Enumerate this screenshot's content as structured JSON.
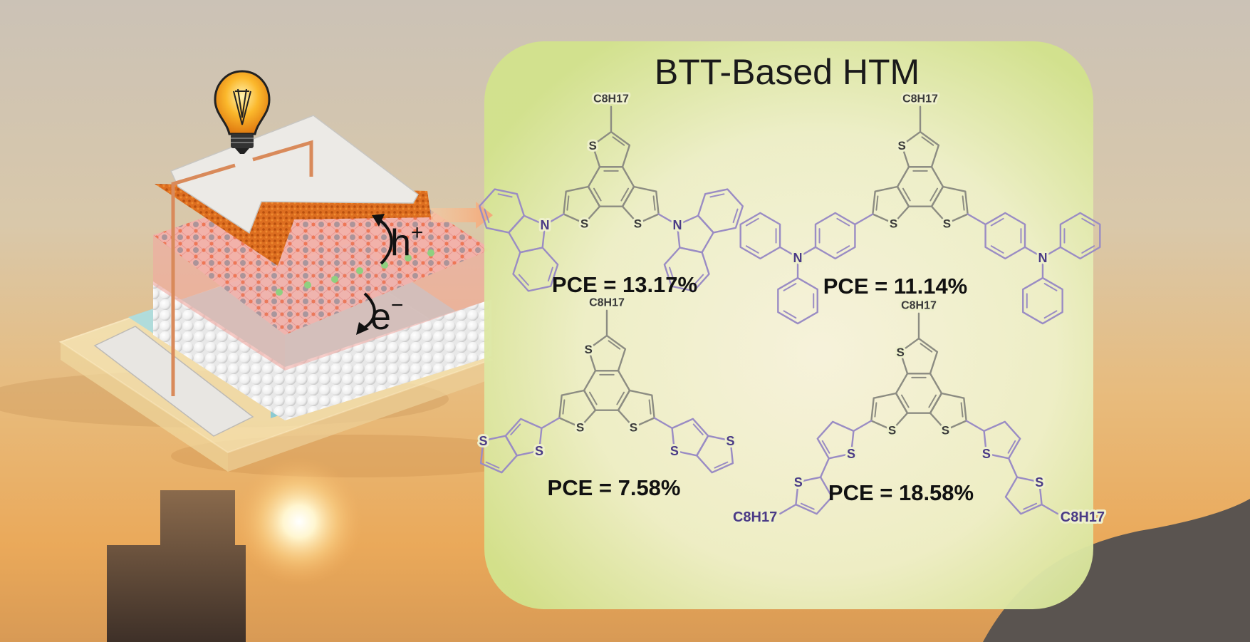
{
  "title": "BTT-Based HTM",
  "device_labels": {
    "hole": "h",
    "hole_charge": "+",
    "electron": "e",
    "electron_charge": "−"
  },
  "atoms": {
    "sulfur": "S",
    "nitrogen": "N",
    "alkyl": "C8H17"
  },
  "molecules": [
    {
      "pce": "PCE = 13.17%"
    },
    {
      "pce": "PCE = 11.14%"
    },
    {
      "pce": "PCE = 7.58%"
    },
    {
      "pce": "PCE = 18.58%"
    }
  ],
  "colors": {
    "panel_edge": "#d2e28c",
    "panel_center": "#f6f3dc",
    "core_bond": "#8c8c82",
    "core_atom": "#3a3a3a",
    "substituent_bond": "#9a8cc4",
    "substituent_atom": "#4a3a86",
    "perovskite": "#f2a0a0",
    "htm_layer": "#d8661c",
    "electrode": "#e8e6e2",
    "wire": "#d98a5a"
  }
}
